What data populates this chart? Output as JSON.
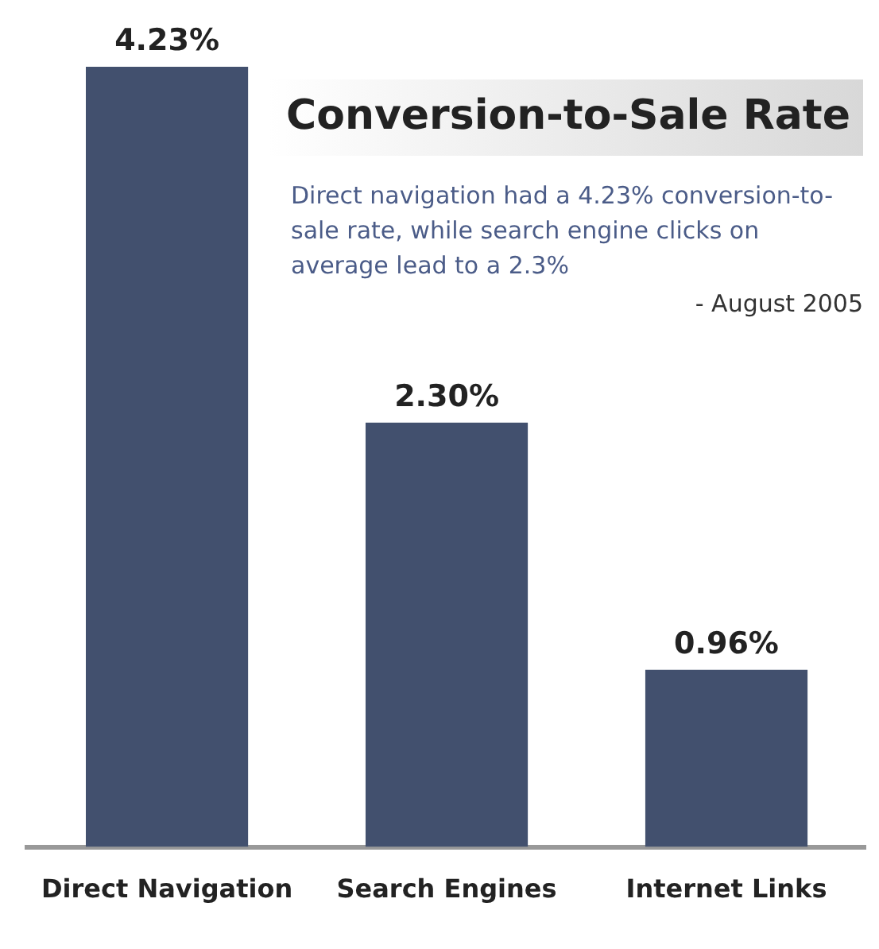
{
  "chart_data": {
    "type": "bar",
    "title": "Conversion-to-Sale Rate",
    "annotations": [
      "Direct navigation had a 4.23% conversion-to-sale rate, while search engine clicks on average lead to a 2.3%",
      "- August 2005"
    ],
    "categories": [
      "Direct Navigation",
      "Search Engines",
      "Internet Links"
    ],
    "values": [
      4.23,
      2.3,
      0.96
    ],
    "value_labels": [
      "4.23%",
      "2.30%",
      "0.96%"
    ],
    "color": "#42506e",
    "tick_labels": "x",
    "grid": false,
    "legend": false
  }
}
